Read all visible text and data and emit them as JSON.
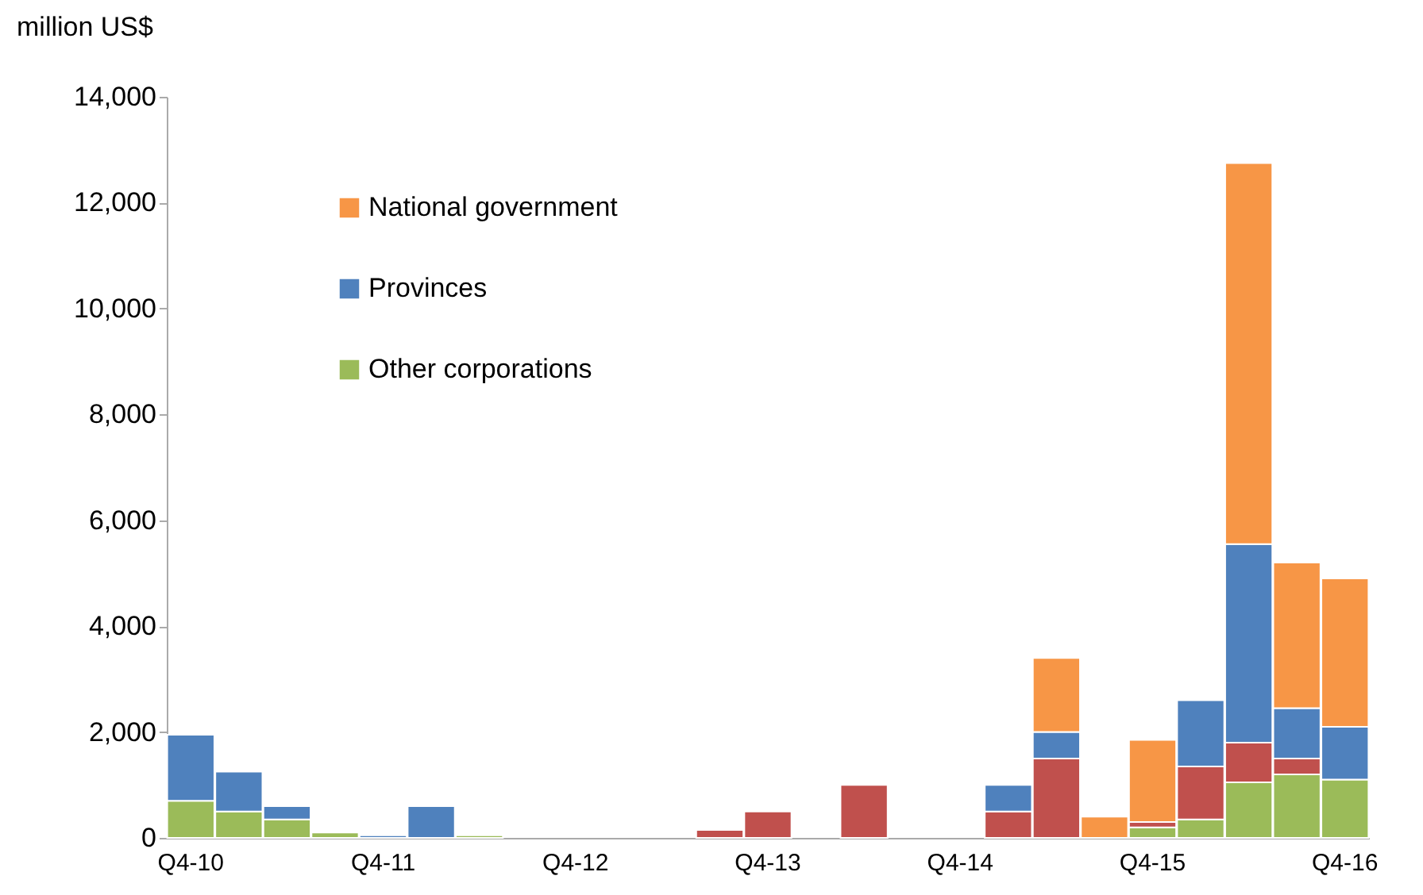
{
  "chart_data": {
    "type": "bar",
    "stacked": true,
    "ylabel": "million US$",
    "categories": [
      "Q4-10",
      null,
      null,
      null,
      "Q4-11",
      null,
      null,
      null,
      "Q4-12",
      null,
      null,
      null,
      "Q4-13",
      null,
      null,
      null,
      "Q4-14",
      null,
      null,
      null,
      "Q4-15",
      null,
      null,
      null,
      "Q4-16"
    ],
    "series": [
      {
        "name": "Other corporations",
        "color": "#9bbb59",
        "values": [
          700,
          500,
          350,
          100,
          0,
          0,
          50,
          0,
          0,
          0,
          0,
          0,
          0,
          0,
          0,
          0,
          0,
          0,
          0,
          0,
          200,
          350,
          1050,
          1200,
          1100
        ]
      },
      {
        "color": "#c0504d",
        "values": [
          0,
          0,
          0,
          0,
          0,
          0,
          0,
          0,
          0,
          0,
          0,
          150,
          500,
          0,
          1000,
          0,
          0,
          500,
          1500,
          0,
          100,
          1000,
          750,
          300,
          0
        ]
      },
      {
        "name": "Provinces",
        "color": "#4f81bd",
        "values": [
          1250,
          750,
          250,
          0,
          50,
          600,
          0,
          0,
          0,
          0,
          0,
          0,
          0,
          0,
          0,
          0,
          0,
          500,
          500,
          0,
          0,
          1250,
          3750,
          950,
          1000
        ]
      },
      {
        "name": "National government",
        "color": "#f79646",
        "values": [
          0,
          0,
          0,
          0,
          0,
          0,
          0,
          0,
          0,
          0,
          0,
          0,
          0,
          0,
          0,
          0,
          0,
          0,
          1400,
          400,
          1550,
          0,
          7200,
          2750,
          2800
        ]
      }
    ],
    "ylim": [
      0,
      14000
    ],
    "yticks": [
      0,
      {
        "value": 2000,
        "label": "2,000"
      },
      {
        "value": 4000,
        "label": "4,000"
      },
      {
        "value": 6000,
        "label": "6,000"
      },
      {
        "value": 8000,
        "label": "8,000"
      },
      {
        "value": 10000,
        "label": "10,000"
      },
      {
        "value": 12000,
        "label": "12,000"
      },
      {
        "value": 14000,
        "label": "14,000"
      }
    ],
    "grid": false,
    "legend": "top left"
  }
}
